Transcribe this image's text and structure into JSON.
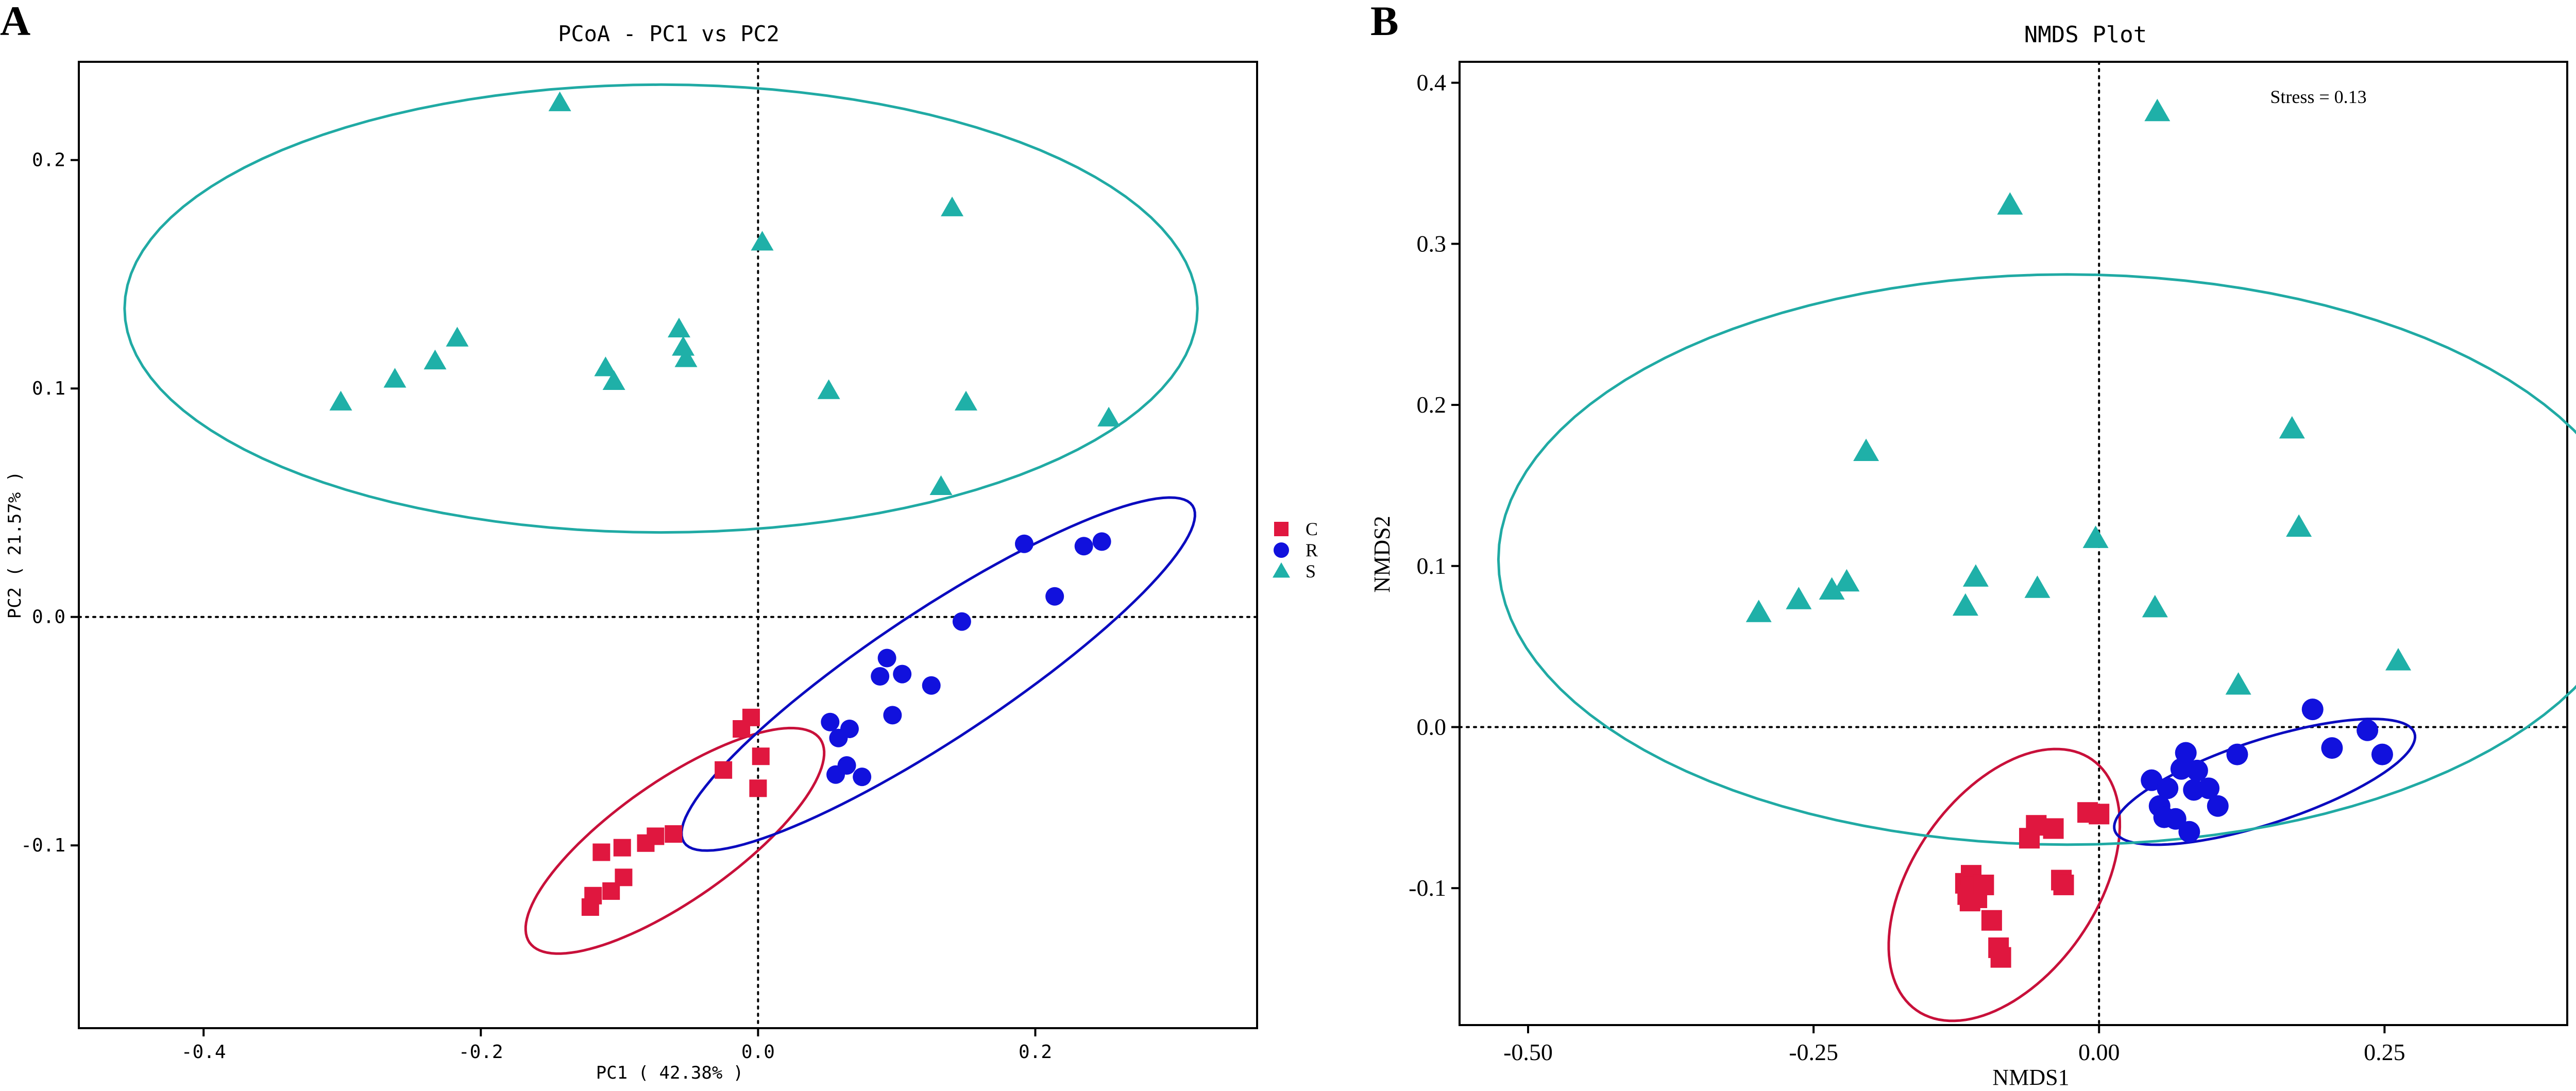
{
  "figure": {
    "panels": [
      "A",
      "B"
    ],
    "colors": {
      "C": "#e0173f",
      "R": "#1111dd",
      "S": "#1fb0a8",
      "ellipse_C": "#c8103a",
      "ellipse_R": "#0b0bbf",
      "ellipse_S": "#20aaa4"
    }
  },
  "chart_data": [
    {
      "panel": "A",
      "type": "scatter",
      "title": "PCoA - PC1 vs PC2",
      "xlabel": "PC1 ( 42.38% )",
      "ylabel": "PC2 ( 21.57% )",
      "xlim": [
        -0.49,
        0.36
      ],
      "ylim": [
        -0.18,
        0.243
      ],
      "xticks": [
        -0.4,
        -0.2,
        0.0,
        0.2
      ],
      "xtick_labels": [
        "-0.4",
        "-0.2",
        "0.0",
        "0.2"
      ],
      "yticks": [
        -0.1,
        0.0,
        0.1,
        0.2
      ],
      "ytick_labels": [
        "-0.1",
        "0.0",
        "0.1",
        "0.2"
      ],
      "reference_lines": {
        "x": 0.0,
        "y": 0.0
      },
      "legend": [
        "C",
        "R",
        "S"
      ],
      "series": [
        {
          "name": "C",
          "marker": "square",
          "x": [
            -0.121,
            -0.119,
            -0.113,
            -0.106,
            -0.098,
            -0.097,
            -0.081,
            -0.074,
            -0.061,
            -0.025,
            -0.012,
            -0.005,
            0.0,
            0.002
          ],
          "y": [
            -0.127,
            -0.122,
            -0.103,
            -0.12,
            -0.101,
            -0.114,
            -0.099,
            -0.096,
            -0.095,
            -0.067,
            -0.049,
            -0.044,
            -0.075,
            -0.061
          ]
        },
        {
          "name": "R",
          "marker": "circle",
          "x": [
            0.052,
            0.056,
            0.058,
            0.064,
            0.066,
            0.075,
            0.088,
            0.093,
            0.097,
            0.104,
            0.125,
            0.147,
            0.192,
            0.214,
            0.235,
            0.248
          ],
          "y": [
            -0.046,
            -0.069,
            -0.053,
            -0.065,
            -0.049,
            -0.07,
            -0.026,
            -0.018,
            -0.043,
            -0.025,
            -0.03,
            -0.002,
            0.032,
            0.009,
            0.031,
            0.033
          ]
        },
        {
          "name": "S",
          "marker": "triangle",
          "x": [
            -0.301,
            -0.262,
            -0.233,
            -0.217,
            -0.143,
            -0.11,
            -0.104,
            -0.057,
            -0.054,
            -0.052,
            0.003,
            0.051,
            0.132,
            0.14,
            0.15,
            0.253
          ],
          "y": [
            0.094,
            0.104,
            0.112,
            0.122,
            0.225,
            0.109,
            0.103,
            0.126,
            0.118,
            0.113,
            0.164,
            0.099,
            0.057,
            0.179,
            0.094,
            0.087
          ]
        }
      ],
      "ellipses": [
        {
          "group": "C",
          "cx": -0.06,
          "cy": -0.098,
          "rx": 0.128,
          "ry": 0.026,
          "angle_deg": 35.0
        },
        {
          "group": "R",
          "cx": 0.13,
          "cy": -0.025,
          "rx": 0.22,
          "ry": 0.028,
          "angle_deg": 33.5
        },
        {
          "group": "S",
          "cx": -0.07,
          "cy": 0.135,
          "rx": 0.387,
          "ry": 0.098,
          "angle_deg": 0.0
        }
      ]
    },
    {
      "panel": "B",
      "type": "scatter",
      "title": "NMDS Plot",
      "xlabel": "NMDS1",
      "ylabel": "NMDS2",
      "annotation": "Stress = 0.13",
      "xlim": [
        -0.56,
        0.41
      ],
      "ylim": [
        -0.185,
        0.413
      ],
      "xticks": [
        -0.5,
        -0.25,
        0.0,
        0.25
      ],
      "xtick_labels": [
        "-0.50",
        "-0.25",
        "0.00",
        "0.25"
      ],
      "yticks": [
        -0.1,
        0.0,
        0.1,
        0.2,
        0.3,
        0.4
      ],
      "ytick_labels": [
        "-0.1",
        "0.0",
        "0.1",
        "0.2",
        "0.3",
        "0.4"
      ],
      "reference_lines": {
        "x": 0.0,
        "y": 0.0
      },
      "legend": [
        "C",
        "R",
        "S"
      ],
      "series": [
        {
          "name": "C",
          "marker": "square",
          "x": [
            -0.117,
            -0.115,
            -0.113,
            -0.112,
            -0.11,
            -0.107,
            -0.101,
            -0.094,
            -0.088,
            -0.086,
            -0.061,
            -0.055,
            -0.04,
            -0.033,
            -0.031,
            -0.01,
            0.0
          ],
          "y": [
            -0.097,
            -0.104,
            -0.108,
            -0.092,
            -0.099,
            -0.106,
            -0.098,
            -0.12,
            -0.137,
            -0.143,
            -0.069,
            -0.061,
            -0.063,
            -0.095,
            -0.098,
            -0.053,
            -0.054
          ],
          "fill_note": "approximate"
        },
        {
          "name": "R",
          "marker": "circle",
          "x": [
            0.046,
            0.053,
            0.057,
            0.06,
            0.067,
            0.072,
            0.076,
            0.079,
            0.083,
            0.086,
            0.096,
            0.104,
            0.121,
            0.187,
            0.204,
            0.235,
            0.248
          ],
          "y": [
            -0.033,
            -0.049,
            -0.056,
            -0.038,
            -0.057,
            -0.026,
            -0.016,
            -0.065,
            -0.039,
            -0.027,
            -0.038,
            -0.049,
            -0.017,
            0.011,
            -0.013,
            -0.002,
            -0.017
          ]
        },
        {
          "name": "S",
          "marker": "triangle",
          "x": [
            -0.298,
            -0.263,
            -0.234,
            -0.221,
            -0.204,
            -0.117,
            -0.108,
            -0.078,
            -0.054,
            -0.003,
            0.049,
            0.051,
            0.122,
            0.169,
            0.175,
            0.262
          ],
          "y": [
            0.071,
            0.079,
            0.085,
            0.09,
            0.171,
            0.075,
            0.093,
            0.324,
            0.086,
            0.117,
            0.074,
            0.382,
            0.026,
            0.185,
            0.124,
            0.041
          ]
        }
      ],
      "ellipses": [
        {
          "group": "C",
          "cx": -0.083,
          "cy": -0.098,
          "rx": 0.134,
          "ry": 0.057,
          "angle_deg": 55.0
        },
        {
          "group": "R",
          "cx": 0.145,
          "cy": -0.034,
          "rx": 0.138,
          "ry": 0.026,
          "angle_deg": 18.0
        },
        {
          "group": "S",
          "cx": -0.028,
          "cy": 0.104,
          "rx": 0.498,
          "ry": 0.177,
          "angle_deg": 0.0
        }
      ]
    }
  ]
}
